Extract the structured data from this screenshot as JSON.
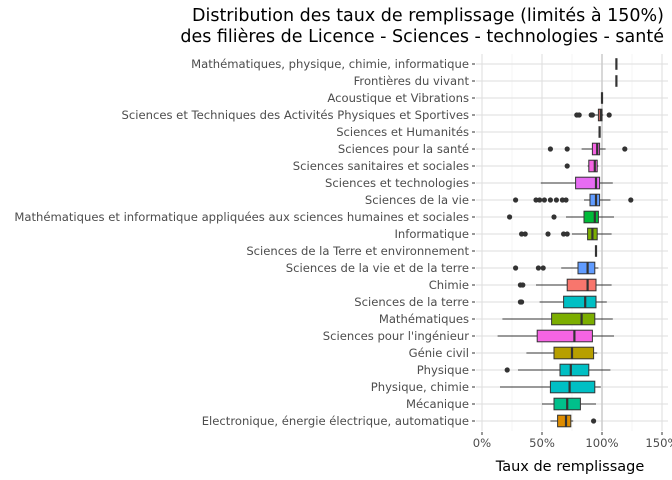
{
  "chart_data": {
    "type": "boxplot",
    "orientation": "horizontal",
    "title": "Distribution des taux de remplissage (limités à 150%)\ndes filières de Licence - Sciences - technologies - santé",
    "xlabel": "Taux de remplissage",
    "ylabel": "",
    "xlim": [
      -5,
      155
    ],
    "x_ticks": [
      0,
      50,
      100,
      150
    ],
    "x_tick_labels": [
      "0%",
      "50%",
      "100%",
      "150%"
    ],
    "reference_line": 100,
    "grid": true,
    "legend": "none",
    "series": [
      {
        "category": "Mathématiques, physique, chimie, informatique",
        "min": 112,
        "q1": 112,
        "median": 112,
        "q3": 112,
        "max": 112,
        "outliers": [],
        "color": "#F8766D"
      },
      {
        "category": "Frontières du vivant",
        "min": 112,
        "q1": 112,
        "median": 112,
        "q3": 112,
        "max": 112,
        "outliers": [],
        "color": "#F8766D"
      },
      {
        "category": "Acoustique et Vibrations",
        "min": 100,
        "q1": 100,
        "median": 100,
        "q3": 100,
        "max": 100,
        "outliers": [],
        "color": "#F8766D"
      },
      {
        "category": "Sciences et Techniques des Activités Physiques et Sportives",
        "min": 90,
        "q1": 97,
        "median": 99,
        "q3": 100,
        "max": 101,
        "outliers": [
          79,
          81,
          91,
          92,
          106
        ],
        "color": "#F8766D"
      },
      {
        "category": "Sciences et Humanités",
        "min": 98,
        "q1": 98,
        "median": 98,
        "q3": 98,
        "max": 98,
        "outliers": [],
        "color": "#F8766D"
      },
      {
        "category": "Sciences pour la santé",
        "min": 83,
        "q1": 92,
        "median": 96,
        "q3": 98,
        "max": 103,
        "outliers": [
          57,
          71,
          119
        ],
        "color": "#F564E3"
      },
      {
        "category": "Sciences sanitaires et sociales",
        "min": 88,
        "q1": 89,
        "median": 94,
        "q3": 96,
        "max": 97,
        "outliers": [
          71
        ],
        "color": "#F564E3"
      },
      {
        "category": "Sciences et technologies",
        "min": 49,
        "q1": 78,
        "median": 95,
        "q3": 98,
        "max": 109,
        "outliers": [],
        "color": "#E76BF3"
      },
      {
        "category": "Sciences de la vie",
        "min": 85,
        "q1": 90,
        "median": 95,
        "q3": 98,
        "max": 107,
        "outliers": [
          28,
          45,
          48,
          52,
          57,
          62,
          67,
          70,
          124
        ],
        "color": "#619CFF"
      },
      {
        "category": "Mathématiques et informatique appliquées aux sciences humaines et sociales",
        "min": 70,
        "q1": 85,
        "median": 94,
        "q3": 97,
        "max": 110,
        "outliers": [
          23,
          60
        ],
        "color": "#00BA38"
      },
      {
        "category": "Informatique",
        "min": 75,
        "q1": 88,
        "median": 92,
        "q3": 96,
        "max": 108,
        "outliers": [
          33,
          36,
          55,
          68,
          71
        ],
        "color": "#7CAE00"
      },
      {
        "category": "Sciences de la Terre et environnement",
        "min": 95,
        "q1": 95,
        "median": 95,
        "q3": 95,
        "max": 95,
        "outliers": [],
        "color": "#7CAE00"
      },
      {
        "category": "Sciences de la vie et de la terre",
        "min": 66,
        "q1": 80,
        "median": 88,
        "q3": 94,
        "max": 97,
        "outliers": [
          28,
          47,
          51
        ],
        "color": "#619CFF"
      },
      {
        "category": "Chimie",
        "min": 45,
        "q1": 71,
        "median": 88,
        "q3": 95,
        "max": 108,
        "outliers": [
          32,
          34
        ],
        "color": "#F8766D"
      },
      {
        "category": "Sciences de la terre",
        "min": 48,
        "q1": 68,
        "median": 86,
        "q3": 95,
        "max": 104,
        "outliers": [
          32,
          33
        ],
        "color": "#00BFC4"
      },
      {
        "category": "Mathématiques",
        "min": 17,
        "q1": 58,
        "median": 83,
        "q3": 94,
        "max": 109,
        "outliers": [],
        "color": "#7CAE00"
      },
      {
        "category": "Sciences pour l'ingénieur",
        "min": 13,
        "q1": 46,
        "median": 77,
        "q3": 92,
        "max": 110,
        "outliers": [],
        "color": "#F564E3"
      },
      {
        "category": "Génie civil",
        "min": 37,
        "q1": 60,
        "median": 75,
        "q3": 93,
        "max": 96,
        "outliers": [],
        "color": "#B79F00"
      },
      {
        "category": "Physique",
        "min": 30,
        "q1": 65,
        "median": 74,
        "q3": 89,
        "max": 107,
        "outliers": [
          21
        ],
        "color": "#00BFC4"
      },
      {
        "category": "Physique, chimie",
        "min": 15,
        "q1": 57,
        "median": 73,
        "q3": 94,
        "max": 99,
        "outliers": [],
        "color": "#00BFC4"
      },
      {
        "category": "Mécanique",
        "min": 50,
        "q1": 60,
        "median": 71,
        "q3": 82,
        "max": 95,
        "outliers": [],
        "color": "#00C08B"
      },
      {
        "category": "Electronique, énergie électrique, automatique",
        "min": 57,
        "q1": 63,
        "median": 70,
        "q3": 74,
        "max": 76,
        "outliers": [
          93
        ],
        "color": "#DE8C00"
      }
    ]
  }
}
